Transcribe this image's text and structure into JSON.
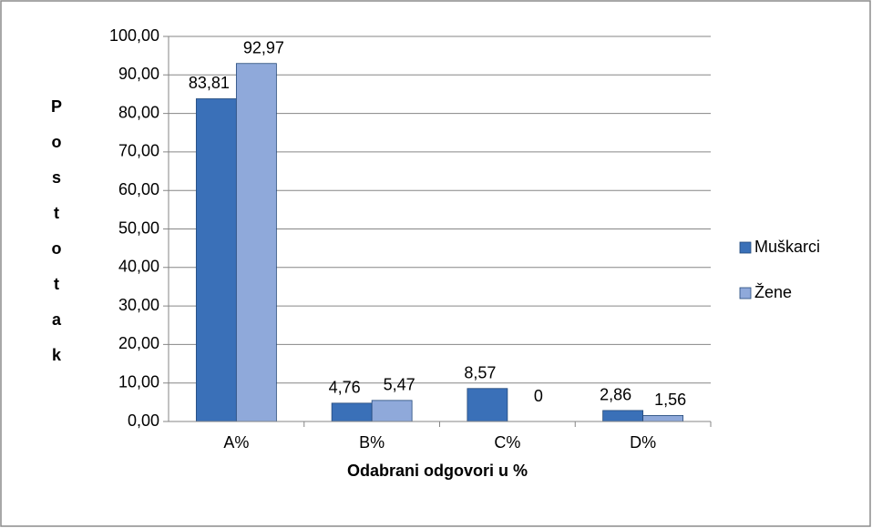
{
  "chart_data": {
    "type": "bar",
    "y_label": "Postotak",
    "x_label": "Odabrani odgovori u %",
    "categories": [
      "A%",
      "B%",
      "C%",
      "D%"
    ],
    "series": [
      {
        "name": "Muškarci",
        "color": "#3a70b8",
        "values": [
          83.81,
          4.76,
          8.57,
          2.86
        ],
        "value_labels": [
          "83,81",
          "4,76",
          "8,57",
          "2,86"
        ]
      },
      {
        "name": "Žene",
        "color": "#8fa9da",
        "values": [
          92.97,
          5.47,
          0,
          1.56
        ],
        "value_labels": [
          "92,97",
          "5,47",
          "0",
          "1,56"
        ]
      }
    ],
    "ylim": [
      0,
      100
    ],
    "yticks": [
      {
        "value": 0,
        "label": "0,00"
      },
      {
        "value": 10,
        "label": "10,00"
      },
      {
        "value": 20,
        "label": "20,00"
      },
      {
        "value": 30,
        "label": "30,00"
      },
      {
        "value": 40,
        "label": "40,00"
      },
      {
        "value": 50,
        "label": "50,00"
      },
      {
        "value": 60,
        "label": "60,00"
      },
      {
        "value": 70,
        "label": "70,00"
      },
      {
        "value": 80,
        "label": "80,00"
      },
      {
        "value": 90,
        "label": "90,00"
      },
      {
        "value": 100,
        "label": "100,00"
      }
    ],
    "grid": true,
    "legend": "right"
  }
}
